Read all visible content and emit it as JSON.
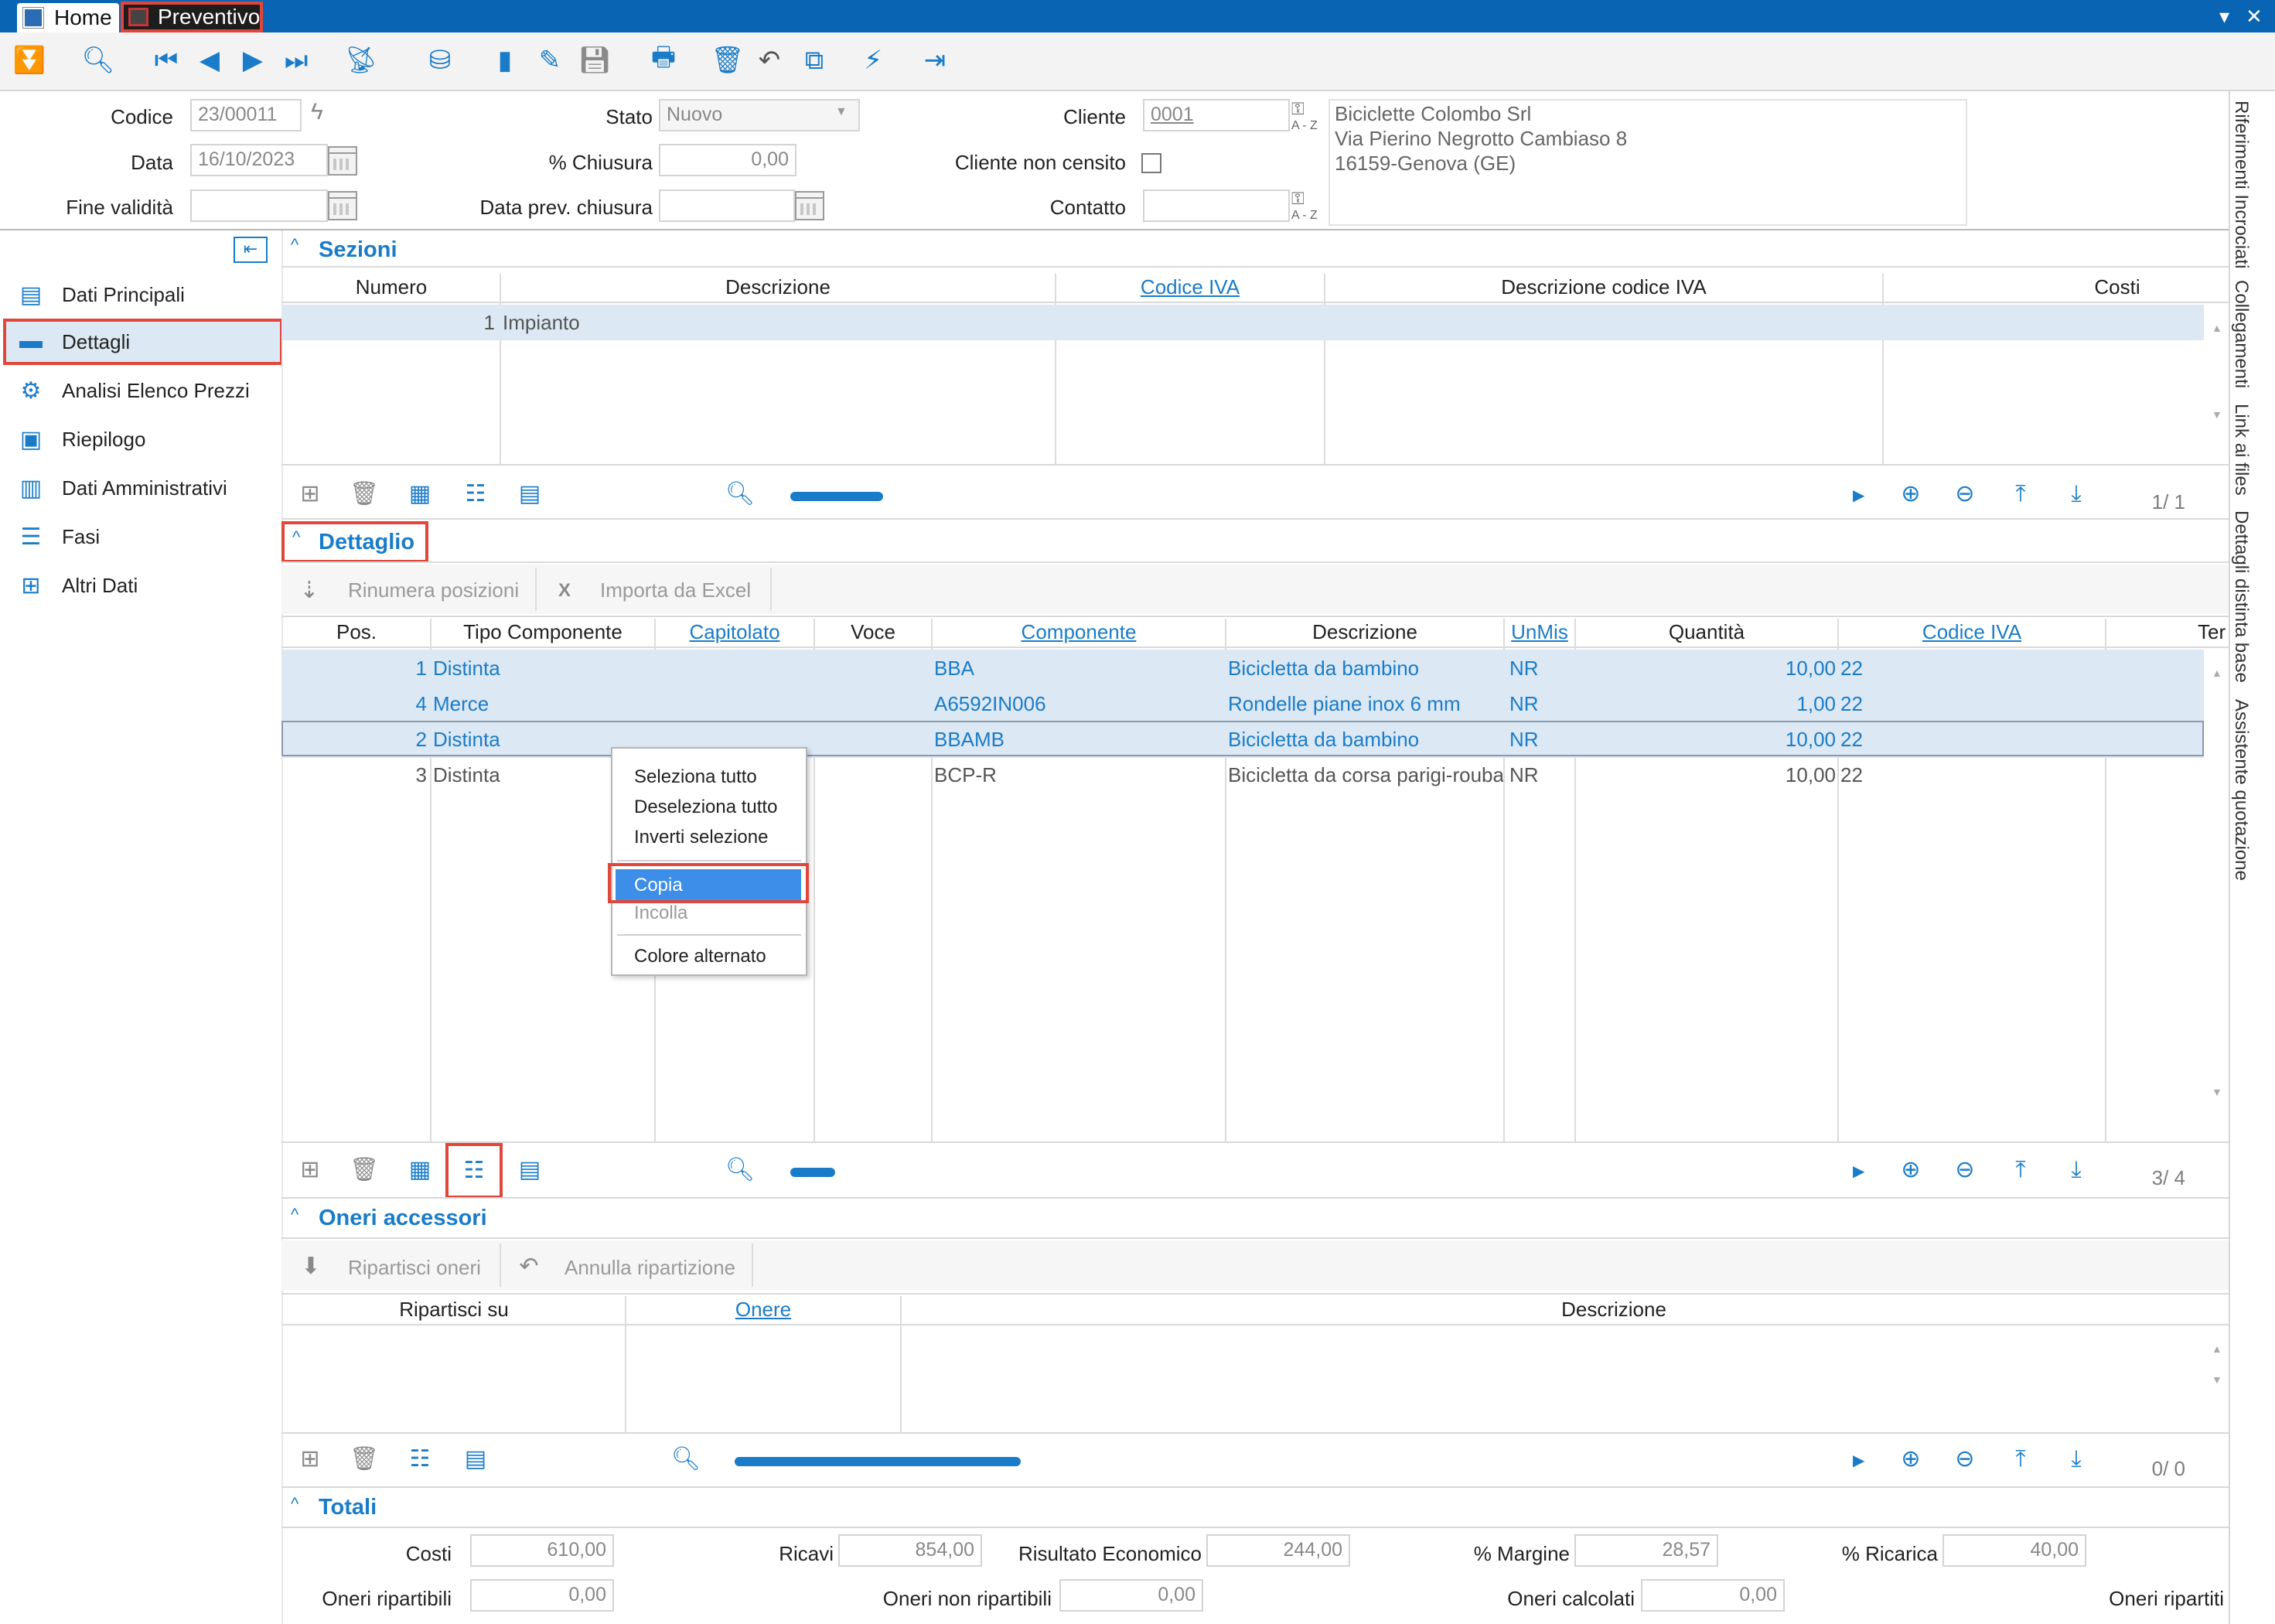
{
  "tabs": {
    "home": "Home",
    "preventivo": "Preventivo"
  },
  "title_controls": {
    "dropdown": "▾",
    "close": "✕"
  },
  "toolbar": {
    "icons": [
      "collapse-icon",
      "search-icon",
      "first-record-icon",
      "previous-record-icon",
      "next-record-icon",
      "last-record-icon",
      "satellite-icon",
      "database-icon",
      "new-document-icon",
      "edit-icon",
      "save-icon",
      "print-icon",
      "delete-icon",
      "undo-icon",
      "copy-icon",
      "lightning-icon",
      "exit-icon"
    ]
  },
  "header": {
    "codice_label": "Codice",
    "codice_value": "23/00011",
    "data_label": "Data",
    "data_value": "16/10/2023",
    "fine_validita_label": "Fine validità",
    "fine_validita_value": "",
    "stato_label": "Stato",
    "stato_value": "Nuovo",
    "chiusura_label": "% Chiusura",
    "chiusura_value": "0,00",
    "data_prev_label": "Data prev. chiusura",
    "data_prev_value": "",
    "cliente_label": "Cliente",
    "cliente_value": "0001",
    "cliente_non_censito_label": "Cliente non censito",
    "contatto_label": "Contatto",
    "contatto_value": "",
    "cliente_info": [
      "Biciclette Colombo Srl",
      "Via Pierino Negrotto Cambiaso 8",
      "16159-Genova (GE)"
    ],
    "key_label": "A - Z"
  },
  "sidebar": {
    "items": [
      {
        "label": "Dati Principali",
        "icon": "id-card-icon"
      },
      {
        "label": "Dettagli",
        "icon": "folder-icon"
      },
      {
        "label": "Analisi Elenco Prezzi",
        "icon": "gear-analysis-icon"
      },
      {
        "label": "Riepilogo",
        "icon": "money-icon"
      },
      {
        "label": "Dati Amministrativi",
        "icon": "books-icon"
      },
      {
        "label": "Fasi",
        "icon": "list-icon"
      },
      {
        "label": "Altri Dati",
        "icon": "add-document-icon"
      }
    ]
  },
  "right_tabs": [
    "Riferimenti Incrociati",
    "Collegamenti",
    "Link ai files",
    "Dettagli distinta base",
    "Assistente quotazione"
  ],
  "sezioni": {
    "title": "Sezioni",
    "columns": [
      "Numero",
      "Descrizione",
      "Codice IVA",
      "Descrizione codice IVA",
      "Costi"
    ],
    "rows": [
      {
        "numero": "1",
        "descrizione": "Impianto"
      }
    ],
    "pager": "1/ 1"
  },
  "dettaglio": {
    "title": "Dettaglio",
    "btn_rinumera": "Rinumera posizioni",
    "btn_importa": "Importa da Excel",
    "columns": [
      "Pos.",
      "Tipo Componente",
      "Capitolato",
      "Voce",
      "Componente",
      "Descrizione",
      "UnMis",
      "Quantità",
      "Codice IVA",
      "Ter"
    ],
    "rows": [
      {
        "pos": "1",
        "tipo": "Distinta",
        "componente": "BBA",
        "descrizione": "Bicicletta da bambino",
        "unmis": "NR",
        "quantita": "10,00",
        "iva": "22"
      },
      {
        "pos": "4",
        "tipo": "Merce",
        "componente": "A6592IN006",
        "descrizione": "Rondelle piane inox 6 mm",
        "unmis": "NR",
        "quantita": "1,00",
        "iva": "22"
      },
      {
        "pos": "2",
        "tipo": "Distinta",
        "componente": "BBAMB",
        "descrizione": "Bicicletta da bambino",
        "unmis": "NR",
        "quantita": "10,00",
        "iva": "22"
      },
      {
        "pos": "3",
        "tipo": "Distinta",
        "componente": "BCP-R",
        "descrizione": "Bicicletta da corsa parigi-rouba",
        "unmis": "NR",
        "quantita": "10,00",
        "iva": "22"
      }
    ],
    "pager": "3/ 4"
  },
  "context_menu": {
    "items": [
      "Seleziona tutto",
      "Deseleziona tutto",
      "Inverti selezione",
      "Copia",
      "Incolla",
      "Colore alternato"
    ]
  },
  "oneri": {
    "title": "Oneri accessori",
    "btn_ripartisci": "Ripartisci oneri",
    "btn_annulla": "Annulla ripartizione",
    "columns": [
      "Ripartisci su",
      "Onere",
      "Descrizione"
    ],
    "pager": "0/ 0"
  },
  "totali": {
    "title": "Totali",
    "costi_label": "Costi",
    "costi_value": "610,00",
    "ricavi_label": "Ricavi",
    "ricavi_value": "854,00",
    "risultato_label": "Risultato Economico",
    "risultato_value": "244,00",
    "margine_label": "% Margine",
    "margine_value": "28,57",
    "ricarica_label": "% Ricarica",
    "ricarica_value": "40,00",
    "oneri_rip_label": "Oneri ripartibili",
    "oneri_rip_value": "0,00",
    "oneri_nonrip_label": "Oneri non ripartibili",
    "oneri_nonrip_value": "0,00",
    "oneri_calc_label": "Oneri calcolati",
    "oneri_calc_value": "0,00",
    "oneri_ripartiti_label": "Oneri ripartiti"
  },
  "colors": {
    "accent": "#1a7cc9",
    "title_bar": "#0a64b4",
    "selection": "#dce8f3",
    "highlight": "#e0473a",
    "menu_selected": "#3c8ee8"
  }
}
